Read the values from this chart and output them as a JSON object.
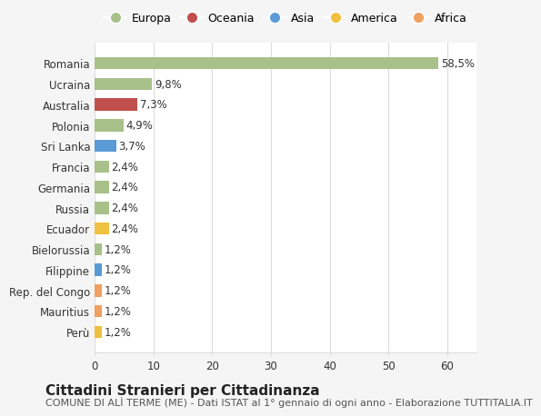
{
  "categories": [
    "Romania",
    "Ucraina",
    "Australia",
    "Polonia",
    "Sri Lanka",
    "Francia",
    "Germania",
    "Russia",
    "Ecuador",
    "Bielorussia",
    "Filippine",
    "Rep. del Congo",
    "Mauritius",
    "Perù"
  ],
  "values": [
    58.5,
    9.8,
    7.3,
    4.9,
    3.7,
    2.4,
    2.4,
    2.4,
    2.4,
    1.2,
    1.2,
    1.2,
    1.2,
    1.2
  ],
  "bar_colors": [
    "#a8c08a",
    "#a8c08a",
    "#c0504d",
    "#a8c08a",
    "#5b9bd5",
    "#a8c08a",
    "#a8c08a",
    "#a8c08a",
    "#f0c040",
    "#a8c08a",
    "#5b9bd5",
    "#f0a060",
    "#f0a060",
    "#f0c040"
  ],
  "labels": [
    "58,5%",
    "9,8%",
    "7,3%",
    "4,9%",
    "3,7%",
    "2,4%",
    "2,4%",
    "2,4%",
    "2,4%",
    "1,2%",
    "1,2%",
    "1,2%",
    "1,2%",
    "1,2%"
  ],
  "legend_items": [
    {
      "label": "Europa",
      "color": "#a8c08a"
    },
    {
      "label": "Oceania",
      "color": "#c0504d"
    },
    {
      "label": "Asia",
      "color": "#5b9bd5"
    },
    {
      "label": "America",
      "color": "#f0c040"
    },
    {
      "label": "Africa",
      "color": "#f0a060"
    }
  ],
  "xlim": [
    0,
    65
  ],
  "xticks": [
    0,
    10,
    20,
    30,
    40,
    50,
    60
  ],
  "title": "Cittadini Stranieri per Cittadinanza",
  "subtitle": "COMUNE DI ALÌ TERME (ME) - Dati ISTAT al 1° gennaio di ogni anno - Elaborazione TUTTITALIA.IT",
  "background_color": "#f5f5f5",
  "plot_background": "#ffffff",
  "grid_color": "#dddddd",
  "title_fontsize": 11,
  "subtitle_fontsize": 8,
  "label_fontsize": 8.5,
  "tick_fontsize": 8.5
}
